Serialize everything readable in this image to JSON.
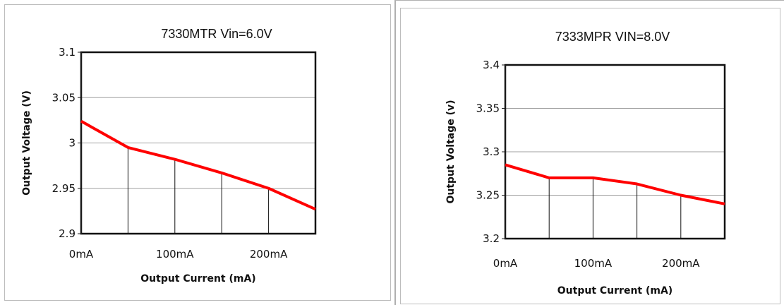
{
  "chart_data": [
    {
      "type": "line",
      "title": "7330MTR  Vin=6.0V",
      "xlabel": "Output Current (mA)",
      "ylabel": "Output Voltage (V)",
      "x": [
        0,
        50,
        100,
        150,
        200,
        250
      ],
      "x_ticks": [
        0,
        100,
        200
      ],
      "x_tick_labels": [
        "0mA",
        "100mA",
        "200mA"
      ],
      "xlim": [
        0,
        250
      ],
      "ylim": [
        2.9,
        3.1
      ],
      "y_ticks": [
        2.9,
        2.95,
        3.0,
        3.05,
        3.1
      ],
      "y_tick_labels": [
        "2.9",
        "2.95",
        "3",
        "3.05",
        "3.1"
      ],
      "grid": "horizontal",
      "drop_lines": true,
      "series": [
        {
          "values": [
            3.024,
            2.995,
            2.982,
            2.967,
            2.95,
            2.927
          ],
          "color": "#ff0000"
        }
      ]
    },
    {
      "type": "line",
      "title": "7333MPR  VIN=8.0V",
      "xlabel": "Output Current (mA)",
      "ylabel": "Output Voltage (v)",
      "x": [
        0,
        50,
        100,
        150,
        200,
        250
      ],
      "x_ticks": [
        0,
        100,
        200
      ],
      "x_tick_labels": [
        "0mA",
        "100mA",
        "200mA"
      ],
      "xlim": [
        0,
        250
      ],
      "ylim": [
        3.2,
        3.4
      ],
      "y_ticks": [
        3.2,
        3.25,
        3.3,
        3.35,
        3.4
      ],
      "y_tick_labels": [
        "3.2",
        "3.25",
        "3.3",
        "3.35",
        "3.4"
      ],
      "grid": "horizontal",
      "drop_lines": true,
      "series": [
        {
          "values": [
            3.285,
            3.27,
            3.27,
            3.263,
            3.25,
            3.24
          ],
          "color": "#ff0000"
        }
      ]
    }
  ]
}
